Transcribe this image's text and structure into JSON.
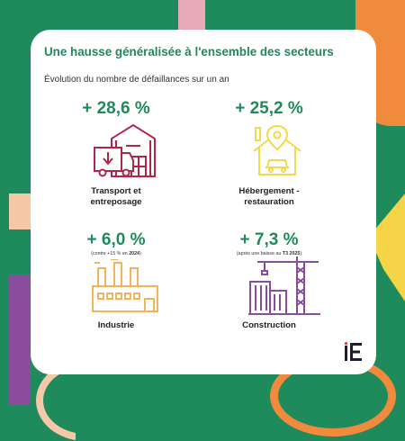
{
  "title": "Une hausse généralisée à l'ensemble des secteurs",
  "subtitle": "Évolution du nombre de défaillances sur un an",
  "sectors": [
    {
      "value": "+ 28,6 %",
      "note": "",
      "label_line1": "Transport et",
      "label_line2": "entreposage",
      "icon": "warehouse-truck-icon"
    },
    {
      "value": "+ 25,2 %",
      "note": "",
      "label_line1": "Hébergement -",
      "label_line2": "restauration",
      "icon": "house-location-pin-icon"
    },
    {
      "value": "+ 6,0 %",
      "note_pre": "(contre +15 % en ",
      "note_bold": "2024",
      "note_post": ")",
      "label_line1": "Industrie",
      "label_line2": "",
      "icon": "factory-icon"
    },
    {
      "value": "+ 7,3 %",
      "note_pre": "(après une baisse au ",
      "note_bold": "T3 2025",
      "note_post": ")",
      "label_line1": "Construction",
      "label_line2": "",
      "icon": "crane-building-icon"
    }
  ],
  "logo": {
    "text": "iE",
    "icon": "ie-logo-icon"
  },
  "colors": {
    "background": "#1f8a5b",
    "accent_green": "#1f8a5b",
    "transport": "#b0254a",
    "hospitality": "#f2d84a",
    "industry": "#f2b35a",
    "construction": "#8a4d9e",
    "deco_pink": "#e8a9b8",
    "deco_orange": "#f08a3c",
    "deco_yellow": "#f5d547",
    "deco_purple": "#8a4d9e",
    "deco_peach": "#f5c9a8"
  }
}
